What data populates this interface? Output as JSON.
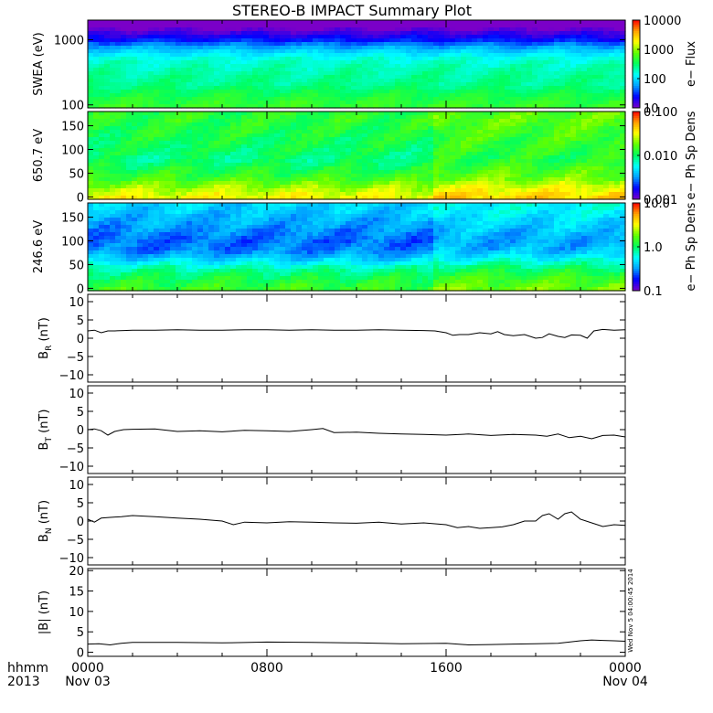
{
  "title": "STEREO-B IMPACT Summary Plot",
  "corner": {
    "time_label": "hhmm",
    "year_label": "2013"
  },
  "stamp": "Wed Nov  5 04:00:45 2014",
  "x_axis": {
    "range_hours": [
      0,
      24
    ],
    "ticks": [
      {
        "hour": 0,
        "time": "0000",
        "date": "Nov 03"
      },
      {
        "hour": 8,
        "time": "0800",
        "date": ""
      },
      {
        "hour": 16,
        "time": "1600",
        "date": ""
      },
      {
        "hour": 24,
        "time": "0000",
        "date": "Nov 04"
      }
    ]
  },
  "colors": {
    "spectrum": [
      "#7a00c8",
      "#0000ff",
      "#00a0ff",
      "#00ffff",
      "#00ff60",
      "#60ff00",
      "#ffff00",
      "#ffa000",
      "#ff0000"
    ],
    "line": "#000000",
    "axis": "#000000",
    "background": "#ffffff"
  },
  "chart_data": [
    {
      "type": "heatmap",
      "name": "swea",
      "ylabel": "SWEA (eV)",
      "yscale": "log",
      "ylim": [
        90,
        2000
      ],
      "yticks": [
        {
          "v": 100,
          "label": "100"
        },
        {
          "v": 1000,
          "label": "1000"
        }
      ],
      "colorbar": {
        "label": "e− Flux",
        "scale": "log",
        "range": [
          10,
          10000
        ],
        "ticks": [
          {
            "v": 10,
            "label": "10"
          },
          {
            "v": 100,
            "label": "100"
          },
          {
            "v": 1000,
            "label": "1000"
          },
          {
            "v": 10000,
            "label": "10000"
          }
        ]
      },
      "profile_energy": [
        100,
        200,
        300,
        500,
        700,
        1000,
        1500,
        2000
      ],
      "profile_log_flux": [
        2.7,
        2.4,
        2.35,
        2.2,
        1.9,
        1.4,
        1.0,
        0.6
      ]
    },
    {
      "type": "heatmap",
      "name": "pad_650",
      "ylabel": "650.7 eV",
      "ylim": [
        -5,
        180
      ],
      "yticks": [
        {
          "v": 0,
          "label": "0"
        },
        {
          "v": 50,
          "label": "50"
        },
        {
          "v": 100,
          "label": "100"
        },
        {
          "v": 150,
          "label": "150"
        }
      ],
      "colorbar": {
        "label": "e− Ph Sp Dens",
        "scale": "log",
        "range": [
          0.001,
          0.1
        ],
        "ticks": [
          {
            "v": 0.001,
            "label": "0.001"
          },
          {
            "v": 0.01,
            "label": "0.010"
          },
          {
            "v": 0.1,
            "label": "0.100"
          }
        ]
      },
      "profile_angle": [
        0,
        20,
        40,
        60,
        80,
        100,
        130,
        160,
        180
      ],
      "profile_log_value": [
        -1.5,
        -1.65,
        -1.85,
        -1.95,
        -2.05,
        -2.0,
        -1.95,
        -1.9,
        -1.9
      ]
    },
    {
      "type": "heatmap",
      "name": "pad_246",
      "ylabel": "246.6 eV",
      "ylim": [
        -5,
        180
      ],
      "yticks": [
        {
          "v": 0,
          "label": "0"
        },
        {
          "v": 50,
          "label": "50"
        },
        {
          "v": 100,
          "label": "100"
        },
        {
          "v": 150,
          "label": "150"
        }
      ],
      "colorbar": {
        "label": "e− Ph Sp Dens",
        "scale": "log",
        "range": [
          0.1,
          10
        ],
        "ticks": [
          {
            "v": 0.1,
            "label": "0.1"
          },
          {
            "v": 1,
            "label": "1.0"
          },
          {
            "v": 10,
            "label": "10.0"
          }
        ]
      },
      "profile_angle": [
        0,
        20,
        40,
        60,
        80,
        100,
        130,
        160,
        180
      ],
      "profile_log_value": [
        0.15,
        0.05,
        -0.1,
        -0.35,
        -0.55,
        -0.6,
        -0.5,
        -0.4,
        -0.35
      ]
    },
    {
      "type": "line",
      "name": "br",
      "ylabel": "B_R (nT)",
      "ylabel_main": "B",
      "ylabel_sub": "R",
      "ylabel_unit": " (nT)",
      "ylim": [
        -12,
        12
      ],
      "yticks": [
        {
          "v": -10,
          "label": "−10"
        },
        {
          "v": -5,
          "label": "−5"
        },
        {
          "v": 0,
          "label": "0"
        },
        {
          "v": 5,
          "label": "5"
        },
        {
          "v": 10,
          "label": "10"
        }
      ],
      "x": [
        0.0,
        0.3,
        0.6,
        0.9,
        1.2,
        1.6,
        2.0,
        3.0,
        4.0,
        5.0,
        6.0,
        7.0,
        8.0,
        9.0,
        10.0,
        11.0,
        12.0,
        13.0,
        14.0,
        15.0,
        15.5,
        16.0,
        16.3,
        16.6,
        17.0,
        17.5,
        18.0,
        18.3,
        18.6,
        19.0,
        19.5,
        20.0,
        20.3,
        20.6,
        21.0,
        21.3,
        21.6,
        22.0,
        22.3,
        22.6,
        23.0,
        23.5,
        24.0
      ],
      "y": [
        2.0,
        2.2,
        1.5,
        2.0,
        2.0,
        2.1,
        2.2,
        2.2,
        2.3,
        2.2,
        2.2,
        2.3,
        2.3,
        2.2,
        2.3,
        2.2,
        2.2,
        2.3,
        2.2,
        2.1,
        2.0,
        1.5,
        0.8,
        1.0,
        1.0,
        1.5,
        1.2,
        1.8,
        1.0,
        0.7,
        1.0,
        0.0,
        0.2,
        1.2,
        0.5,
        0.2,
        0.9,
        0.8,
        0.0,
        2.0,
        2.4,
        2.2,
        2.3
      ]
    },
    {
      "type": "line",
      "name": "bt",
      "ylabel": "B_T (nT)",
      "ylabel_main": "B",
      "ylabel_sub": "T",
      "ylabel_unit": " (nT)",
      "ylim": [
        -12,
        12
      ],
      "yticks": [
        {
          "v": -10,
          "label": "−10"
        },
        {
          "v": -5,
          "label": "−5"
        },
        {
          "v": 0,
          "label": "0"
        },
        {
          "v": 5,
          "label": "5"
        },
        {
          "v": 10,
          "label": "10"
        }
      ],
      "x": [
        0.0,
        0.3,
        0.6,
        0.9,
        1.2,
        1.6,
        2.0,
        3.0,
        4.0,
        5.0,
        6.0,
        7.0,
        8.0,
        9.0,
        10.0,
        10.5,
        11.0,
        12.0,
        13.0,
        14.0,
        15.0,
        16.0,
        17.0,
        18.0,
        19.0,
        20.0,
        20.5,
        21.0,
        21.5,
        22.0,
        22.5,
        23.0,
        23.5,
        24.0
      ],
      "y": [
        0.0,
        0.2,
        -0.3,
        -1.5,
        -0.5,
        0.0,
        0.1,
        0.2,
        -0.5,
        -0.3,
        -0.6,
        -0.2,
        -0.3,
        -0.5,
        0.0,
        0.3,
        -0.8,
        -0.7,
        -1.0,
        -1.2,
        -1.3,
        -1.5,
        -1.2,
        -1.6,
        -1.3,
        -1.5,
        -1.8,
        -1.2,
        -2.2,
        -1.8,
        -2.5,
        -1.6,
        -1.5,
        -2.0
      ]
    },
    {
      "type": "line",
      "name": "bn",
      "ylabel": "B_N (nT)",
      "ylabel_main": "B",
      "ylabel_sub": "N",
      "ylabel_unit": " (nT)",
      "ylim": [
        -12,
        12
      ],
      "yticks": [
        {
          "v": -10,
          "label": "−10"
        },
        {
          "v": -5,
          "label": "−5"
        },
        {
          "v": 0,
          "label": "0"
        },
        {
          "v": 5,
          "label": "5"
        },
        {
          "v": 10,
          "label": "10"
        }
      ],
      "x": [
        0.0,
        0.3,
        0.6,
        1.0,
        1.5,
        2.0,
        3.0,
        4.0,
        5.0,
        6.0,
        6.5,
        7.0,
        8.0,
        9.0,
        10.0,
        11.0,
        12.0,
        13.0,
        14.0,
        15.0,
        16.0,
        16.5,
        17.0,
        17.5,
        18.0,
        18.5,
        19.0,
        19.5,
        20.0,
        20.3,
        20.6,
        21.0,
        21.3,
        21.6,
        22.0,
        22.5,
        23.0,
        23.5,
        24.0
      ],
      "y": [
        0.5,
        -0.3,
        0.8,
        1.0,
        1.2,
        1.5,
        1.2,
        0.8,
        0.5,
        0.0,
        -1.0,
        -0.3,
        -0.5,
        -0.2,
        -0.3,
        -0.5,
        -0.6,
        -0.3,
        -0.8,
        -0.5,
        -1.0,
        -1.8,
        -1.5,
        -2.0,
        -1.8,
        -1.6,
        -1.0,
        0.0,
        0.0,
        1.5,
        2.0,
        0.5,
        2.0,
        2.5,
        0.5,
        -0.5,
        -1.5,
        -1.0,
        -1.2
      ]
    },
    {
      "type": "line",
      "name": "btotal",
      "ylabel": "|B| (nT)",
      "ylabel_main": "|B|",
      "ylabel_sub": "",
      "ylabel_unit": " (nT)",
      "ylim": [
        -1,
        20.5
      ],
      "yticks": [
        {
          "v": 0,
          "label": "0"
        },
        {
          "v": 5,
          "label": "5"
        },
        {
          "v": 10,
          "label": "10"
        },
        {
          "v": 15,
          "label": "15"
        },
        {
          "v": 20,
          "label": "20"
        }
      ],
      "x": [
        0.0,
        0.5,
        1.0,
        1.5,
        2.0,
        4.0,
        6.0,
        8.0,
        10.0,
        12.0,
        14.0,
        16.0,
        17.0,
        18.0,
        19.0,
        20.0,
        21.0,
        22.0,
        22.5,
        23.0,
        23.5,
        24.0
      ],
      "y": [
        2.0,
        2.1,
        1.8,
        2.2,
        2.4,
        2.4,
        2.3,
        2.5,
        2.4,
        2.3,
        2.1,
        2.2,
        1.8,
        1.9,
        2.0,
        2.1,
        2.2,
        2.8,
        3.0,
        2.9,
        2.8,
        2.7
      ]
    }
  ]
}
